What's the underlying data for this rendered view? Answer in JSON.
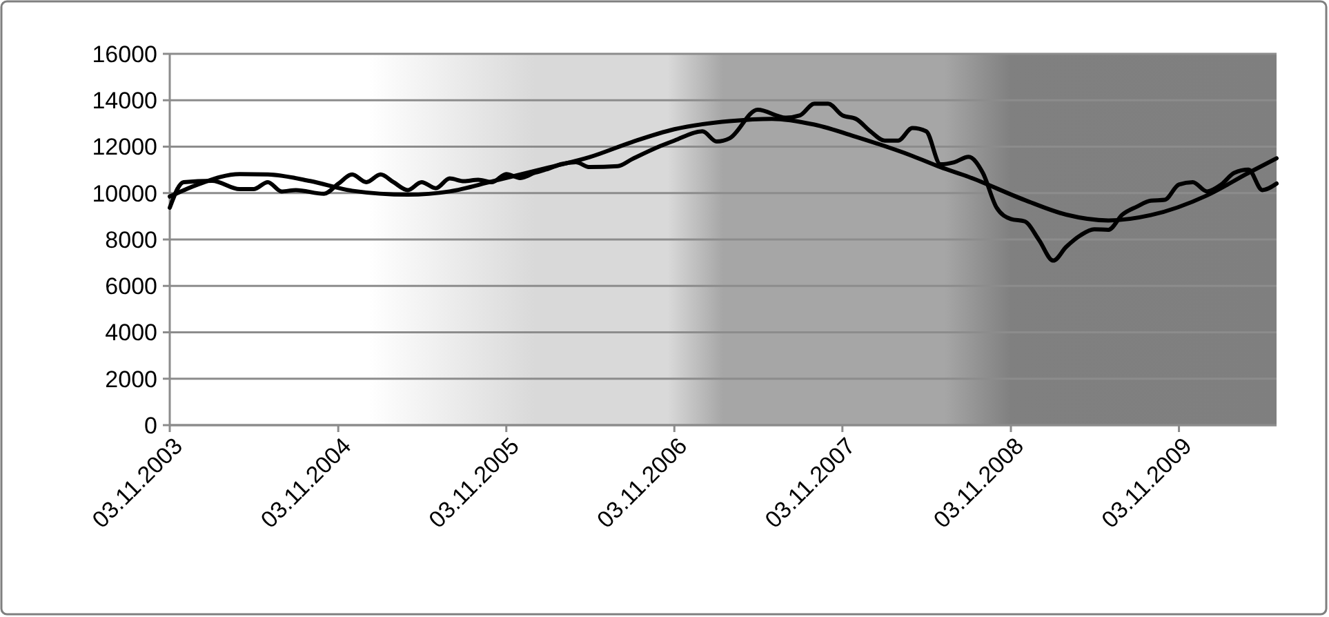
{
  "chart_data": {
    "type": "line",
    "grid": "y",
    "line_style": "solid",
    "marker": "none",
    "xlim": [
      "2003-11-03",
      "2010-06-03"
    ],
    "xticks": [
      {
        "value": "2003-11-03",
        "label": "03.11.2003"
      },
      {
        "value": "2004-11-03",
        "label": "03.11.2004"
      },
      {
        "value": "2005-11-03",
        "label": "03.11.2005"
      },
      {
        "value": "2006-11-03",
        "label": "03.11.2006"
      },
      {
        "value": "2007-11-03",
        "label": "03.11.2007"
      },
      {
        "value": "2008-11-03",
        "label": "03.11.2008"
      },
      {
        "value": "2009-11-03",
        "label": "03.11.2009"
      }
    ],
    "ylim": [
      0,
      16000
    ],
    "yticks": [
      0,
      2000,
      4000,
      6000,
      8000,
      10000,
      12000,
      14000,
      16000
    ],
    "series": [
      {
        "color": "#000000",
        "x": [
          "2003-11-03",
          "2003-12-03",
          "2004-02-03",
          "2004-04-03",
          "2004-05-03",
          "2004-06-03",
          "2004-07-03",
          "2004-08-03",
          "2004-10-03",
          "2004-11-03",
          "2004-12-03",
          "2005-01-03",
          "2005-02-03",
          "2005-03-03",
          "2005-04-03",
          "2005-05-03",
          "2005-06-03",
          "2005-07-03",
          "2005-08-03",
          "2005-09-03",
          "2005-10-03",
          "2005-11-03",
          "2005-12-03",
          "2006-01-03",
          "2006-02-03",
          "2006-03-03",
          "2006-04-03",
          "2006-05-03",
          "2006-07-03",
          "2006-08-03",
          "2006-10-03",
          "2006-11-03",
          "2007-01-03",
          "2007-02-03",
          "2007-03-03",
          "2007-05-03",
          "2007-07-03",
          "2007-08-03",
          "2007-09-03",
          "2007-10-03",
          "2007-11-03",
          "2007-12-03",
          "2008-01-03",
          "2008-02-03",
          "2008-03-03",
          "2008-04-03",
          "2008-05-03",
          "2008-06-03",
          "2008-07-03",
          "2008-08-03",
          "2008-09-03",
          "2008-10-03",
          "2008-11-03",
          "2008-12-03",
          "2009-01-03",
          "2009-02-03",
          "2009-03-03",
          "2009-04-03",
          "2009-05-03",
          "2009-06-03",
          "2009-07-03",
          "2009-08-03",
          "2009-09-03",
          "2009-10-03",
          "2009-11-03",
          "2009-12-03",
          "2010-01-03",
          "2010-02-03",
          "2010-03-03",
          "2010-04-03",
          "2010-05-03",
          "2010-06-03"
        ],
        "values": [
          9370,
          10470,
          10530,
          10170,
          10170,
          10470,
          10070,
          10130,
          9970,
          10400,
          10800,
          10470,
          10800,
          10470,
          10130,
          10470,
          10210,
          10630,
          10510,
          10570,
          10470,
          10820,
          10650,
          10870,
          11050,
          11250,
          11330,
          11120,
          11160,
          11460,
          12020,
          12260,
          12660,
          12220,
          12360,
          13590,
          13250,
          13350,
          13850,
          13850,
          13350,
          13190,
          12660,
          12260,
          12260,
          12800,
          12660,
          11240,
          11330,
          11560,
          10870,
          9370,
          8880,
          8780,
          7980,
          7090,
          7680,
          8180,
          8440,
          8420,
          9070,
          9410,
          9670,
          9710,
          10370,
          10470,
          10070,
          10370,
          10870,
          11010,
          10130,
          10410
        ]
      },
      {
        "color": "#000000",
        "x": [
          "2003-11-03",
          "2004-01-03",
          "2004-04-03",
          "2004-06-03",
          "2004-09-03",
          "2004-12-03",
          "2005-04-03",
          "2005-07-03",
          "2005-10-03",
          "2006-02-03",
          "2006-05-03",
          "2006-08-03",
          "2006-11-03",
          "2007-03-03",
          "2007-06-03",
          "2007-09-03",
          "2007-12-03",
          "2008-04-03",
          "2008-06-03",
          "2008-08-03",
          "2008-12-03",
          "2009-03-03",
          "2009-06-03",
          "2009-09-03",
          "2010-01-03",
          "2010-04-03",
          "2010-06-03"
        ],
        "values": [
          9850,
          10370,
          10820,
          10800,
          10520,
          10100,
          9930,
          10070,
          10500,
          11100,
          11550,
          12200,
          12750,
          13100,
          13200,
          12950,
          12420,
          11600,
          11120,
          10700,
          9700,
          9070,
          8820,
          9050,
          9900,
          10870,
          11500
        ]
      }
    ]
  }
}
